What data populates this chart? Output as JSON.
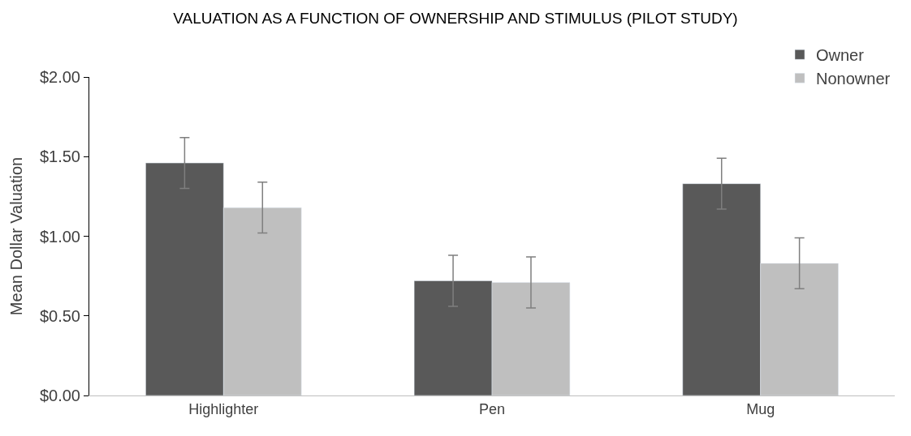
{
  "chart_data": {
    "type": "bar",
    "title": "VALUATION AS A FUNCTION OF OWNERSHIP AND STIMULUS (PILOT STUDY)",
    "ylabel": "Mean Dollar Valuation",
    "categories": [
      "Highlighter",
      "Pen",
      "Mug"
    ],
    "series": [
      {
        "name": "Owner",
        "color": "#595959",
        "values": [
          1.46,
          0.72,
          1.33
        ],
        "errors": [
          0.16,
          0.16,
          0.16
        ]
      },
      {
        "name": "Nonowner",
        "color": "#bfbfbf",
        "values": [
          1.18,
          0.71,
          0.83
        ],
        "errors": [
          0.16,
          0.16,
          0.16
        ]
      }
    ],
    "ylim": [
      0,
      2
    ],
    "yticks": [
      {
        "value": 0,
        "label": "$0.00"
      },
      {
        "value": 0.5,
        "label": "$0.50"
      },
      {
        "value": 1,
        "label": "$1.00"
      },
      {
        "value": 1.5,
        "label": "$1.50"
      },
      {
        "value": 2,
        "label": "$2.00"
      }
    ],
    "legend": "top right"
  }
}
